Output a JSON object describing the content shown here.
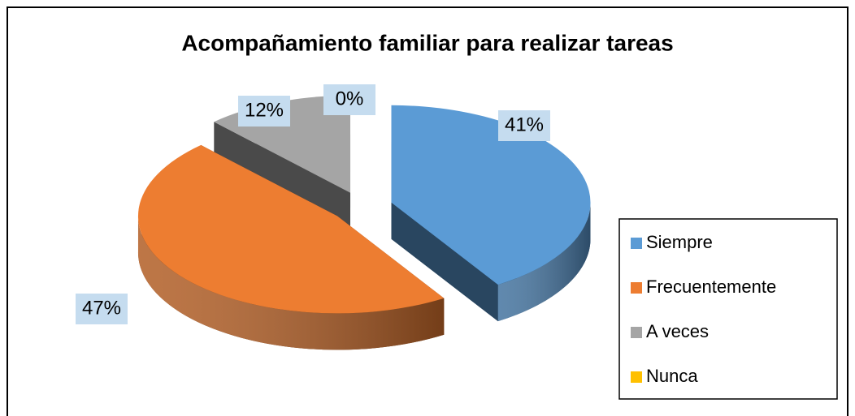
{
  "chart_data": {
    "type": "pie",
    "title": "Acompañamiento familiar para realizar tareas",
    "categories": [
      "Siempre",
      "Frecuentemente",
      "A veces",
      "Nunca"
    ],
    "values": [
      41,
      47,
      12,
      0
    ],
    "value_labels": [
      "41%",
      "47%",
      "12%",
      "0%"
    ],
    "colors": [
      "#5b9bd5",
      "#ed7d31",
      "#a5a5a5",
      "#ffc000"
    ],
    "legend": "right"
  }
}
